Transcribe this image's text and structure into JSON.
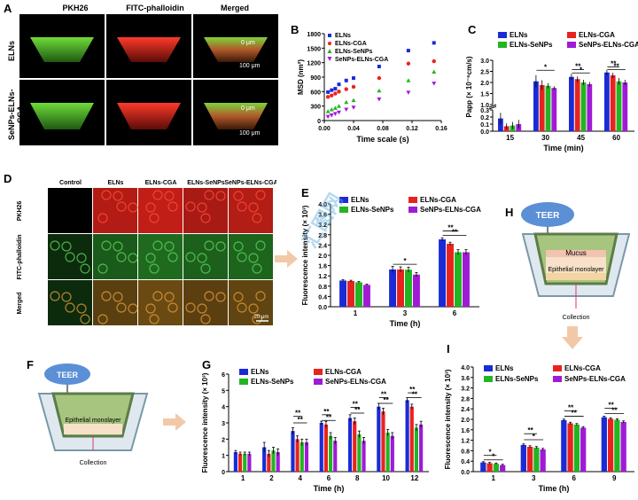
{
  "panels": {
    "A": {
      "label": "A",
      "columns": [
        "PKH26",
        "FITC-phalloidin",
        "Merged"
      ],
      "rows": [
        "ELNs",
        "SeNPs-ELNs-CGA"
      ],
      "depth_top": "0 μm",
      "depth_bottom": "100 μm"
    },
    "B": {
      "label": "B"
    },
    "C": {
      "label": "C"
    },
    "D": {
      "label": "D",
      "columns": [
        "Control",
        "ELNs",
        "ELNs-CGA",
        "ELNs-SeNPs",
        "SeNPs-ELNs-CGA"
      ],
      "rows": [
        "PKH26",
        "FITC-phalloidin",
        "Merged"
      ],
      "scale_bar": "20 μm"
    },
    "E": {
      "label": "E"
    },
    "F": {
      "label": "F",
      "teer": "TEER",
      "monolayer": "Epithelial monolayer",
      "collection": "Collection"
    },
    "G": {
      "label": "G"
    },
    "H": {
      "label": "H",
      "teer": "TEER",
      "mucus": "Mucus",
      "monolayer": "Epithelial monolayer",
      "collection": "Collection"
    },
    "I": {
      "label": "I"
    }
  },
  "legend_names": [
    "ELNs",
    "ELNs-CGA",
    "ELNs-SeNPs",
    "SeNPs-ELNs-CGA"
  ],
  "colors": {
    "ELNs": "#1a2bd6",
    "ELNs-CGA": "#e8231f",
    "ELNs-SeNPs": "#22b522",
    "SeNPs-ELNs-CGA": "#a01ad6"
  },
  "watermark": "汇图网",
  "chart_data": [
    {
      "id": "B",
      "type": "scatter",
      "xlabel": "Time scale (s)",
      "ylabel": "MSD (nm²)",
      "xlim": [
        0,
        0.16
      ],
      "ylim": [
        0,
        1800
      ],
      "xticks": [
        "0.00",
        "0.04",
        "0.08",
        "0.12",
        "0.16"
      ],
      "yticks": [
        "0",
        "300",
        "600",
        "900",
        "1200",
        "1500",
        "1800"
      ],
      "series": [
        {
          "name": "ELNs",
          "marker": "square",
          "x": [
            0.005,
            0.01,
            0.015,
            0.02,
            0.03,
            0.04,
            0.075,
            0.115,
            0.15
          ],
          "y": [
            590,
            630,
            660,
            750,
            830,
            880,
            1120,
            1450,
            1610
          ]
        },
        {
          "name": "ELNs-CGA",
          "marker": "circle",
          "x": [
            0.005,
            0.01,
            0.015,
            0.02,
            0.03,
            0.04,
            0.075,
            0.115,
            0.15
          ],
          "y": [
            490,
            520,
            560,
            600,
            650,
            700,
            880,
            1180,
            1230
          ]
        },
        {
          "name": "ELNs-SeNPs",
          "marker": "triangle",
          "x": [
            0.005,
            0.01,
            0.015,
            0.02,
            0.03,
            0.04,
            0.075,
            0.115,
            0.15
          ],
          "y": [
            190,
            230,
            260,
            300,
            380,
            420,
            620,
            830,
            1010
          ]
        },
        {
          "name": "SeNPs-ELNs-CGA",
          "marker": "triangle-down",
          "x": [
            0.005,
            0.01,
            0.015,
            0.02,
            0.03,
            0.04,
            0.075,
            0.115,
            0.15
          ],
          "y": [
            80,
            110,
            140,
            170,
            230,
            270,
            440,
            580,
            770
          ]
        }
      ]
    },
    {
      "id": "C",
      "type": "bar",
      "xlabel": "Time (min)",
      "ylabel": "Papp (× 10⁻⁶cm/s)",
      "categories": [
        "15",
        "30",
        "45",
        "60"
      ],
      "yticks_low": [
        "0.0",
        "0.1",
        "0.2",
        "0.3"
      ],
      "yticks_high": [
        "1.0",
        "1.5",
        "2.0",
        "2.5",
        "3.0"
      ],
      "break": [
        0.3,
        1.0
      ],
      "series": [
        {
          "name": "ELNs",
          "values": [
            0.18,
            2.05,
            2.25,
            2.45
          ],
          "err": [
            0.08,
            0.28,
            0.14,
            0.12
          ]
        },
        {
          "name": "ELNs-CGA",
          "values": [
            0.07,
            1.88,
            2.15,
            2.32
          ],
          "err": [
            0.04,
            0.22,
            0.12,
            0.12
          ]
        },
        {
          "name": "ELNs-SeNPs",
          "values": [
            0.08,
            1.85,
            2.0,
            2.05
          ],
          "err": [
            0.05,
            0.12,
            0.12,
            0.15
          ]
        },
        {
          "name": "SeNPs-ELNs-CGA",
          "values": [
            0.1,
            1.75,
            1.92,
            2.0
          ],
          "err": [
            0.06,
            0.08,
            0.1,
            0.12
          ]
        }
      ],
      "sig": [
        {
          "cat": 1,
          "from": 0,
          "to": 3,
          "level": 2.55,
          "label": "*"
        },
        {
          "cat": 2,
          "from": 0,
          "to": 2,
          "level": 2.58,
          "label": "**"
        },
        {
          "cat": 2,
          "from": 0,
          "to": 3,
          "level": 2.43,
          "label": "*"
        },
        {
          "cat": 3,
          "from": 0,
          "to": 2,
          "level": 2.7,
          "label": "**"
        },
        {
          "cat": 3,
          "from": 0,
          "to": 3,
          "level": 2.58,
          "label": "**"
        }
      ]
    },
    {
      "id": "E",
      "type": "bar",
      "xlabel": "Time (h)",
      "ylabel": "Fluorescence intensity (× 10³)",
      "categories": [
        "1",
        "3",
        "6"
      ],
      "ylim": [
        0,
        4.0
      ],
      "yticks": [
        "0.0",
        "0.4",
        "0.8",
        "1.2",
        "1.6",
        "2.0",
        "2.4",
        "2.8",
        "3.2",
        "3.6",
        "4.0"
      ],
      "series": [
        {
          "name": "ELNs",
          "values": [
            1.02,
            1.45,
            2.62
          ],
          "err": [
            0.03,
            0.12,
            0.06
          ]
        },
        {
          "name": "ELNs-CGA",
          "values": [
            1.0,
            1.45,
            2.45
          ],
          "err": [
            0.03,
            0.1,
            0.06
          ]
        },
        {
          "name": "ELNs-SeNPs",
          "values": [
            0.95,
            1.44,
            2.12
          ],
          "err": [
            0.03,
            0.1,
            0.1
          ]
        },
        {
          "name": "SeNPs-ELNs-CGA",
          "values": [
            0.85,
            1.25,
            2.12
          ],
          "err": [
            0.03,
            0.08,
            0.1
          ]
        }
      ],
      "sig": [
        {
          "cat": 1,
          "from": 0,
          "to": 3,
          "level": 1.65,
          "label": "*"
        },
        {
          "cat": 2,
          "from": 0,
          "to": 2,
          "level": 2.95,
          "label": "**"
        },
        {
          "cat": 2,
          "from": 0,
          "to": 3,
          "level": 2.78,
          "label": "**"
        }
      ]
    },
    {
      "id": "G",
      "type": "bar",
      "xlabel": "Time (h)",
      "ylabel": "Fluorescence intensity (× 10³)",
      "categories": [
        "1",
        "2",
        "4",
        "6",
        "8",
        "10",
        "12"
      ],
      "ylim": [
        0,
        6
      ],
      "yticks": [
        "0",
        "1",
        "2",
        "3",
        "4",
        "5",
        "6"
      ],
      "series": [
        {
          "name": "ELNs",
          "values": [
            1.2,
            1.5,
            2.5,
            3.0,
            3.3,
            4.0,
            4.4
          ],
          "err": [
            0.1,
            0.3,
            0.2,
            0.1,
            0.2,
            0.2,
            0.15
          ]
        },
        {
          "name": "ELNs-CGA",
          "values": [
            1.1,
            1.1,
            2.0,
            2.9,
            3.1,
            3.7,
            4.0
          ],
          "err": [
            0.1,
            0.2,
            0.2,
            0.2,
            0.2,
            0.2,
            0.15
          ]
        },
        {
          "name": "ELNs-SeNPs",
          "values": [
            1.1,
            1.3,
            1.8,
            2.2,
            2.3,
            2.4,
            2.7
          ],
          "err": [
            0.1,
            0.2,
            0.2,
            0.2,
            0.2,
            0.2,
            0.2
          ]
        },
        {
          "name": "SeNPs-ELNs-CGA",
          "values": [
            1.1,
            1.2,
            1.8,
            1.9,
            1.9,
            2.2,
            2.9
          ],
          "err": [
            0.1,
            0.2,
            0.2,
            0.2,
            0.2,
            0.2,
            0.2
          ]
        }
      ],
      "sig": [
        {
          "cat": 2,
          "from": 0,
          "to": 2,
          "level": 3.4,
          "label": "**"
        },
        {
          "cat": 2,
          "from": 0,
          "to": 3,
          "level": 3.0,
          "label": "**"
        },
        {
          "cat": 3,
          "from": 0,
          "to": 2,
          "level": 3.5,
          "label": "**"
        },
        {
          "cat": 3,
          "from": 0,
          "to": 3,
          "level": 3.15,
          "label": "**"
        },
        {
          "cat": 4,
          "from": 0,
          "to": 2,
          "level": 3.95,
          "label": "**"
        },
        {
          "cat": 4,
          "from": 0,
          "to": 3,
          "level": 3.6,
          "label": "**"
        },
        {
          "cat": 5,
          "from": 0,
          "to": 2,
          "level": 4.55,
          "label": "**"
        },
        {
          "cat": 5,
          "from": 0,
          "to": 3,
          "level": 4.2,
          "label": "**"
        },
        {
          "cat": 6,
          "from": 0,
          "to": 2,
          "level": 4.85,
          "label": "**"
        },
        {
          "cat": 6,
          "from": 0,
          "to": 3,
          "level": 4.55,
          "label": "**"
        }
      ]
    },
    {
      "id": "I",
      "type": "bar",
      "xlabel": "Time (h)",
      "ylabel": "Fluorescence intensity (× 10³)",
      "categories": [
        "1",
        "3",
        "6",
        "9"
      ],
      "ylim": [
        0,
        4.0
      ],
      "yticks": [
        "0.0",
        "0.4",
        "0.8",
        "1.2",
        "1.6",
        "2.0",
        "2.4",
        "2.8",
        "3.2",
        "3.6",
        "4.0"
      ],
      "series": [
        {
          "name": "ELNs",
          "values": [
            0.35,
            1.02,
            1.97,
            2.08
          ],
          "err": [
            0.03,
            0.04,
            0.04,
            0.04
          ]
        },
        {
          "name": "ELNs-CGA",
          "values": [
            0.32,
            0.95,
            1.85,
            2.02
          ],
          "err": [
            0.03,
            0.04,
            0.04,
            0.04
          ]
        },
        {
          "name": "ELNs-SeNPs",
          "values": [
            0.3,
            0.92,
            1.8,
            1.98
          ],
          "err": [
            0.03,
            0.04,
            0.04,
            0.04
          ]
        },
        {
          "name": "SeNPs-ELNs-CGA",
          "values": [
            0.25,
            0.85,
            1.68,
            1.9
          ],
          "err": [
            0.03,
            0.04,
            0.04,
            0.04
          ]
        }
      ],
      "sig": [
        {
          "cat": 0,
          "from": 0,
          "to": 2,
          "level": 0.62,
          "label": "*"
        },
        {
          "cat": 0,
          "from": 0,
          "to": 3,
          "level": 0.45,
          "label": "*"
        },
        {
          "cat": 1,
          "from": 0,
          "to": 2,
          "level": 1.45,
          "label": "**"
        },
        {
          "cat": 1,
          "from": 0,
          "to": 3,
          "level": 1.22,
          "label": "*"
        },
        {
          "cat": 2,
          "from": 0,
          "to": 2,
          "level": 2.32,
          "label": "**"
        },
        {
          "cat": 2,
          "from": 0,
          "to": 3,
          "level": 2.12,
          "label": "**"
        },
        {
          "cat": 3,
          "from": 0,
          "to": 2,
          "level": 2.42,
          "label": "**"
        },
        {
          "cat": 3,
          "from": 0,
          "to": 3,
          "level": 2.22,
          "label": "**"
        }
      ]
    }
  ]
}
